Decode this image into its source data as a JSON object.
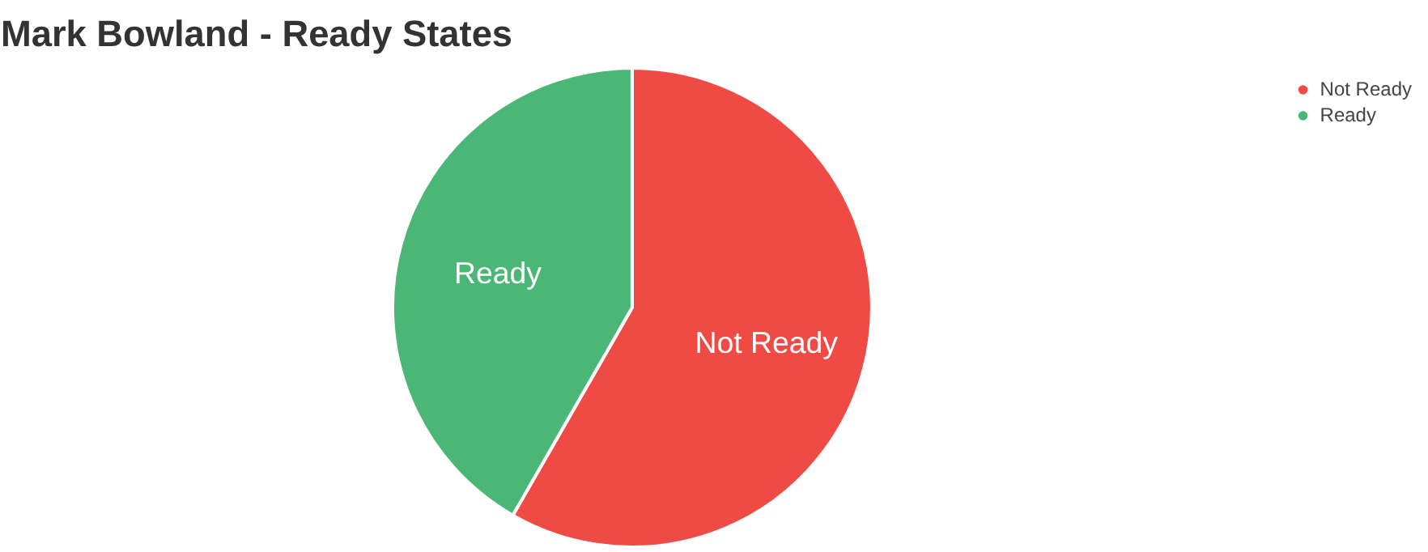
{
  "chart_data": {
    "type": "pie",
    "title": "Mark Bowland - Ready States",
    "categories": [
      "Not Ready",
      "Ready"
    ],
    "values": [
      58.3,
      41.7
    ],
    "colors": [
      "#ef4b44",
      "#4bb776"
    ],
    "data_labels": false,
    "legend": "top right"
  }
}
